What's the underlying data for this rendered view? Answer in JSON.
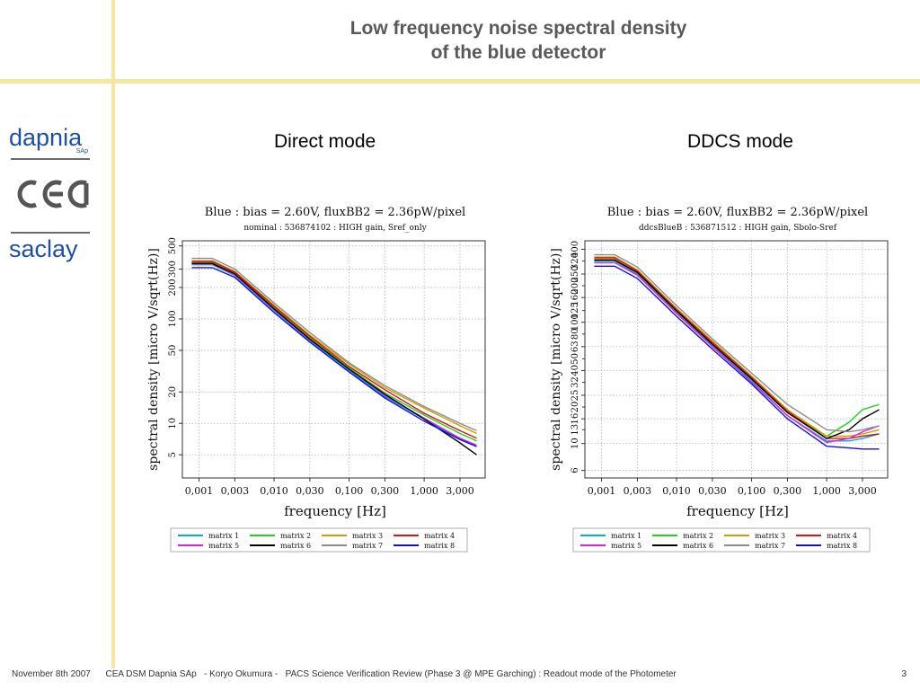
{
  "slide": {
    "title_line1": "Low frequency noise spectral density",
    "title_line2": "of the blue detector",
    "logo_text_top": "dapnia",
    "logo_text_small": "SAp",
    "logo_text_bottom": "saclay",
    "footer_date": "November 8th 2007",
    "footer_text": "CEA DSM Dapnia SAp   - Koryo Okumura -   PACS Science Verification Review (Phase 3 @ MPE Garching) : Readout mode of the Photometer",
    "page_number": "3",
    "accent_color": "#f5e6a0",
    "logo_color": "#1f4fa3"
  },
  "chart_data": [
    {
      "type": "line",
      "mode_label": "Direct mode",
      "title": "Blue : bias = 2.60V, fluxBB2 = 2.36pW/pixel",
      "subtitle": "nominal : 536874102 : HIGH gain, Sref_only",
      "xlabel": "frequency [Hz]",
      "ylabel": "spectral density [micro V/sqrt(Hz)]",
      "xscale": "log",
      "yscale": "log",
      "xlim": [
        0.0006,
        6.5
      ],
      "ylim": [
        3,
        560
      ],
      "xticks": [
        0.001,
        0.003,
        0.01,
        0.03,
        0.1,
        0.3,
        1.0,
        3.0
      ],
      "xtick_labels": [
        "0,001",
        "0,003",
        "0,010",
        "0,030",
        "0,100",
        "0,300",
        "1,000",
        "3,000"
      ],
      "yticks": [
        5,
        10,
        20,
        50,
        100,
        200,
        300,
        500
      ],
      "ytick_labels": [
        "5",
        "10",
        "20",
        "50",
        "100",
        "200",
        "300",
        "500"
      ],
      "grid": true,
      "legend_position": "bottom",
      "series": [
        {
          "name": "matrix 1",
          "color": "#00b0d8",
          "x": [
            0.0008,
            0.001,
            0.0015,
            0.003,
            0.01,
            0.03,
            0.1,
            0.3,
            1.0,
            3.0,
            5.0
          ],
          "y": [
            330,
            330,
            330,
            260,
            120,
            62,
            32,
            18,
            11,
            7.0,
            6.0
          ]
        },
        {
          "name": "matrix 2",
          "color": "#22d222",
          "x": [
            0.0008,
            0.001,
            0.0015,
            0.003,
            0.01,
            0.03,
            0.1,
            0.3,
            1.0,
            3.0,
            5.0
          ],
          "y": [
            345,
            345,
            345,
            275,
            128,
            66,
            34,
            19.5,
            12,
            8.0,
            6.8
          ]
        },
        {
          "name": "matrix 3",
          "color": "#c8a000",
          "x": [
            0.0008,
            0.001,
            0.0015,
            0.003,
            0.01,
            0.03,
            0.1,
            0.3,
            1.0,
            3.0,
            5.0
          ],
          "y": [
            360,
            360,
            360,
            285,
            135,
            70,
            37,
            22,
            14,
            9.5,
            8.0
          ]
        },
        {
          "name": "matrix 4",
          "color": "#e01010",
          "x": [
            0.0008,
            0.001,
            0.0015,
            0.003,
            0.01,
            0.03,
            0.1,
            0.3,
            1.0,
            3.0,
            5.0
          ],
          "y": [
            355,
            355,
            355,
            280,
            132,
            68,
            35,
            21,
            12.5,
            8.5,
            7.2
          ]
        },
        {
          "name": "matrix 5",
          "color": "#e020e0",
          "x": [
            0.0008,
            0.001,
            0.0015,
            0.003,
            0.01,
            0.03,
            0.1,
            0.3,
            1.0,
            3.0,
            5.0
          ],
          "y": [
            335,
            335,
            335,
            265,
            122,
            63,
            33,
            18.5,
            11.2,
            7.2,
            6.2
          ]
        },
        {
          "name": "matrix 6",
          "color": "#000000",
          "x": [
            0.0008,
            0.001,
            0.0015,
            0.003,
            0.01,
            0.03,
            0.1,
            0.3,
            1.0,
            3.0,
            5.0
          ],
          "y": [
            340,
            340,
            340,
            270,
            125,
            64,
            33,
            19,
            11,
            6.5,
            5.0
          ]
        },
        {
          "name": "matrix 7",
          "color": "#8c8c8c",
          "x": [
            0.0008,
            0.001,
            0.0015,
            0.003,
            0.01,
            0.03,
            0.1,
            0.3,
            1.0,
            3.0,
            5.0
          ],
          "y": [
            380,
            380,
            380,
            300,
            142,
            74,
            38,
            23,
            14.5,
            10,
            8.5
          ]
        },
        {
          "name": "matrix 8",
          "color": "#1010e0",
          "x": [
            0.0008,
            0.001,
            0.0015,
            0.003,
            0.01,
            0.03,
            0.1,
            0.3,
            1.0,
            3.0,
            5.0
          ],
          "y": [
            310,
            310,
            310,
            250,
            115,
            60,
            31,
            17.5,
            10.5,
            7.0,
            6.0
          ]
        }
      ]
    },
    {
      "type": "line",
      "mode_label": "DDCS mode",
      "title": "Blue : bias = 2.60V, fluxBB2 = 2.36pW/pixel",
      "subtitle": "ddcsBlueB : 536871512 : HIGH gain, Sbolo-Sref",
      "xlabel": "frequency [Hz]",
      "ylabel": "spectral density [micro V/sqrt(Hz)]",
      "xscale": "log",
      "yscale": "log",
      "xlim": [
        0.0006,
        6.5
      ],
      "ylim": [
        5.2,
        470
      ],
      "xticks": [
        0.001,
        0.003,
        0.01,
        0.03,
        0.1,
        0.3,
        1.0,
        3.0
      ],
      "xtick_labels": [
        "0,001",
        "0,003",
        "0,010",
        "0,030",
        "0,100",
        "0,300",
        "1,000",
        "3,000"
      ],
      "yticks": [
        6,
        10,
        16,
        25,
        40,
        63,
        100,
        160,
        250,
        400
      ],
      "ytick_labels": [
        "6",
        "10",
        "16",
        "25",
        "40",
        "63",
        "100",
        "160",
        "250",
        "400"
      ],
      "extra_ytick_labels": [
        "13",
        "20",
        "32",
        "50",
        "80",
        "125",
        "200",
        "320"
      ],
      "grid": true,
      "legend_position": "bottom",
      "series": [
        {
          "name": "matrix 1",
          "color": "#00b0d8",
          "x": [
            0.0008,
            0.001,
            0.0015,
            0.003,
            0.01,
            0.03,
            0.1,
            0.3,
            1.0,
            2.0,
            3.0,
            5.0
          ],
          "y": [
            320,
            320,
            320,
            250,
            120,
            64,
            33,
            17,
            10.5,
            10.5,
            11,
            12
          ]
        },
        {
          "name": "matrix 2",
          "color": "#22d222",
          "x": [
            0.0008,
            0.001,
            0.0015,
            0.003,
            0.01,
            0.03,
            0.1,
            0.3,
            1.0,
            2.0,
            3.0,
            5.0
          ],
          "y": [
            330,
            330,
            330,
            255,
            123,
            66,
            34,
            18,
            11.5,
            15,
            19,
            21
          ]
        },
        {
          "name": "matrix 3",
          "color": "#c8a000",
          "x": [
            0.0008,
            0.001,
            0.0015,
            0.003,
            0.01,
            0.03,
            0.1,
            0.3,
            1.0,
            2.0,
            3.0,
            5.0
          ],
          "y": [
            345,
            345,
            345,
            270,
            130,
            70,
            36,
            19,
            11.5,
            11.5,
            12,
            13
          ]
        },
        {
          "name": "matrix 4",
          "color": "#e01010",
          "x": [
            0.0008,
            0.001,
            0.0015,
            0.003,
            0.01,
            0.03,
            0.1,
            0.3,
            1.0,
            2.0,
            3.0,
            5.0
          ],
          "y": [
            340,
            340,
            340,
            265,
            127,
            68,
            35,
            18.5,
            11,
            11,
            11.5,
            12
          ]
        },
        {
          "name": "matrix 5",
          "color": "#e020e0",
          "x": [
            0.0008,
            0.001,
            0.0015,
            0.003,
            0.01,
            0.03,
            0.1,
            0.3,
            1.0,
            2.0,
            3.0,
            5.0
          ],
          "y": [
            310,
            310,
            310,
            245,
            118,
            63,
            32,
            17,
            10.2,
            11,
            12.5,
            14
          ]
        },
        {
          "name": "matrix 6",
          "color": "#000000",
          "x": [
            0.0008,
            0.001,
            0.0015,
            0.003,
            0.01,
            0.03,
            0.1,
            0.3,
            1.0,
            2.0,
            3.0,
            5.0
          ],
          "y": [
            325,
            325,
            325,
            258,
            124,
            66,
            34,
            18,
            11,
            13,
            16,
            19
          ]
        },
        {
          "name": "matrix 7",
          "color": "#8c8c8c",
          "x": [
            0.0008,
            0.001,
            0.0015,
            0.003,
            0.01,
            0.03,
            0.1,
            0.3,
            1.0,
            2.0,
            3.0,
            5.0
          ],
          "y": [
            360,
            360,
            360,
            285,
            137,
            73,
            38,
            21,
            13,
            12.5,
            13,
            14
          ]
        },
        {
          "name": "matrix 8",
          "color": "#1010e0",
          "x": [
            0.0008,
            0.001,
            0.0015,
            0.003,
            0.01,
            0.03,
            0.1,
            0.3,
            1.0,
            2.0,
            3.0,
            5.0
          ],
          "y": [
            290,
            290,
            290,
            230,
            112,
            60,
            31,
            16,
            9.5,
            9.2,
            9.0,
            9.0
          ]
        }
      ]
    }
  ]
}
